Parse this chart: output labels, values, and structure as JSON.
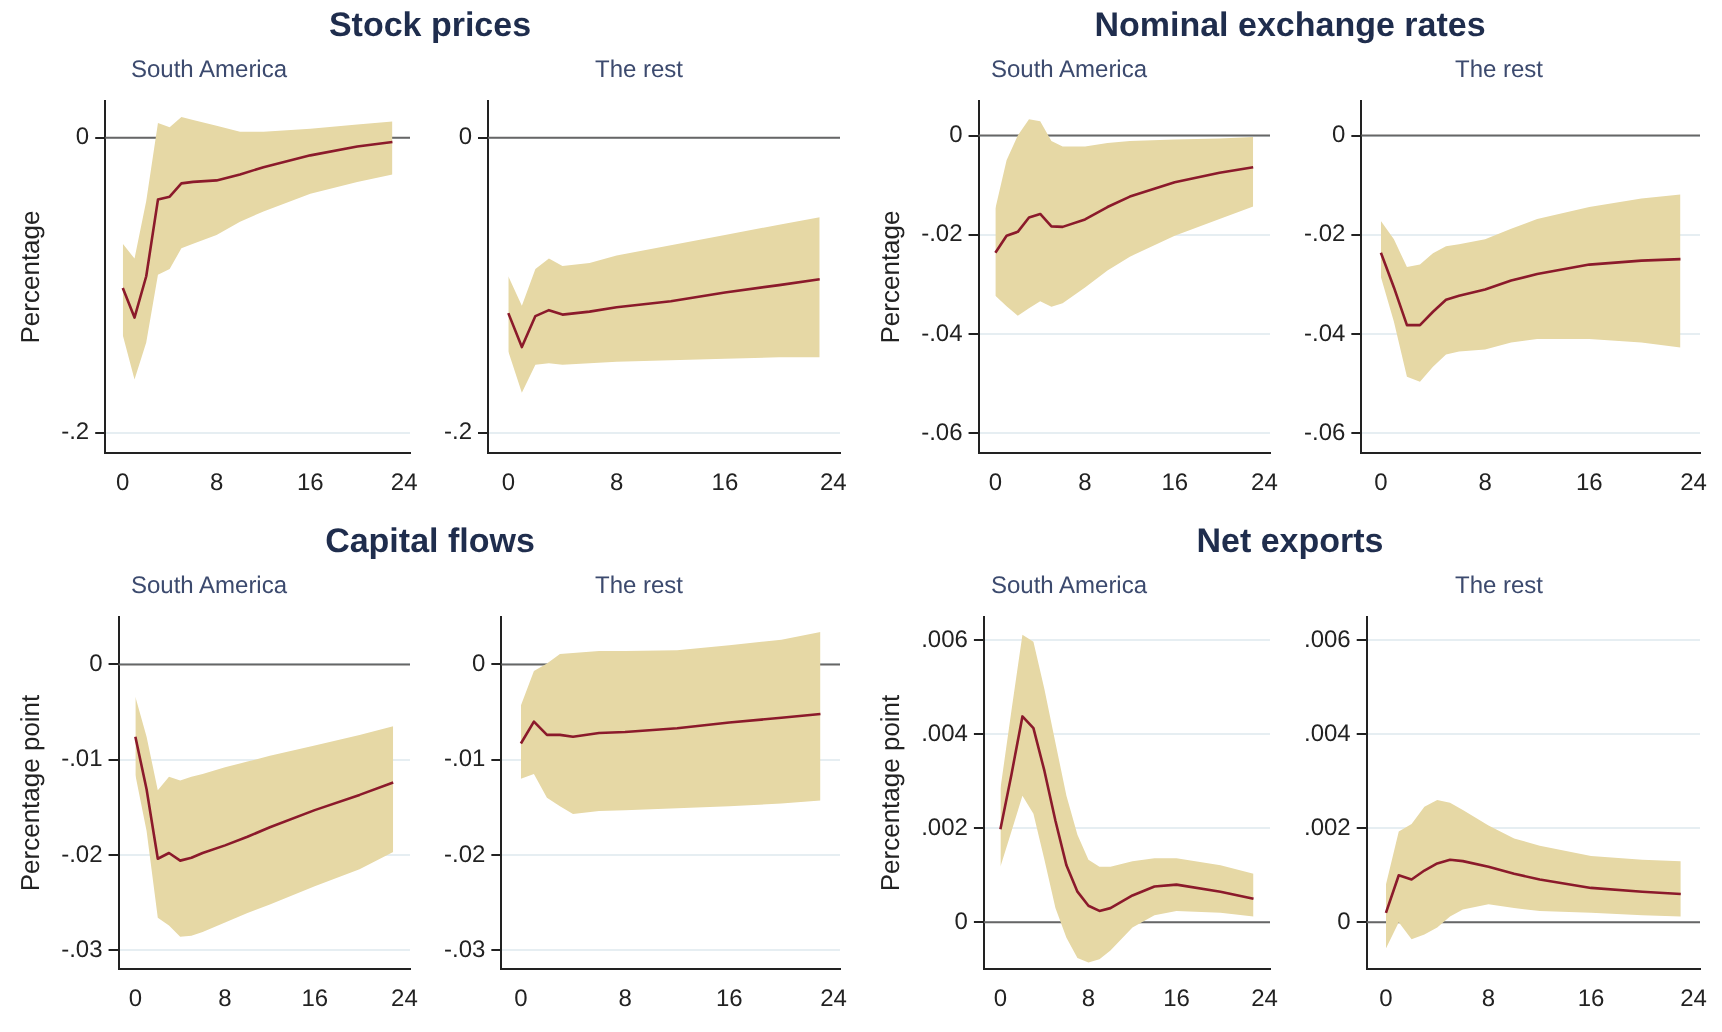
{
  "chart_data": [
    {
      "type": "line",
      "title": "Stock prices",
      "subtitle": "South America",
      "ylabel": "Percentage",
      "xlim": [
        -1.5,
        24.5
      ],
      "xticks": [
        0,
        8,
        16,
        24
      ],
      "ylim": [
        -0.214,
        0.025
      ],
      "yticks": [
        {
          "value": -0.2,
          "label": "-.2"
        },
        {
          "value": 0,
          "label": "0"
        }
      ],
      "grid": "y",
      "ref_lines": [
        {
          "axis": "y",
          "value": 0,
          "color": "#666666"
        }
      ],
      "series": [
        {
          "color": "#8b1a2b",
          "x": [
            0,
            1,
            2,
            3,
            4,
            5,
            6,
            8,
            10,
            12,
            16,
            20,
            23
          ],
          "values": [
            -0.102,
            -0.122,
            -0.094,
            -0.042,
            -0.04,
            -0.031,
            -0.03,
            -0.029,
            -0.025,
            -0.02,
            -0.012,
            -0.006,
            -0.003
          ],
          "upper": [
            -0.072,
            -0.082,
            -0.043,
            0.01,
            0.007,
            0.014,
            0.012,
            0.008,
            0.004,
            0.004,
            0.006,
            0.009,
            0.011
          ],
          "lower": [
            -0.134,
            -0.164,
            -0.139,
            -0.093,
            -0.089,
            -0.075,
            -0.072,
            -0.066,
            -0.057,
            -0.05,
            -0.038,
            -0.03,
            -0.025
          ]
        }
      ]
    },
    {
      "type": "line",
      "subtitle": "The rest",
      "xlim": [
        -1.5,
        24.5
      ],
      "xticks": [
        0,
        8,
        16,
        24
      ],
      "ylim": [
        -0.214,
        0.025
      ],
      "yticks": [
        {
          "value": -0.2,
          "label": "-.2"
        },
        {
          "value": 0,
          "label": "0"
        }
      ],
      "grid": "y",
      "ref_lines": [
        {
          "axis": "y",
          "value": 0,
          "color": "#666666"
        }
      ],
      "series": [
        {
          "color": "#8b1a2b",
          "x": [
            0,
            1,
            2,
            3,
            4,
            6,
            8,
            12,
            16,
            20,
            23
          ],
          "values": [
            -0.119,
            -0.142,
            -0.121,
            -0.117,
            -0.12,
            -0.118,
            -0.115,
            -0.111,
            -0.105,
            -0.1,
            -0.096
          ],
          "upper": [
            -0.094,
            -0.114,
            -0.089,
            -0.082,
            -0.087,
            -0.085,
            -0.08,
            -0.073,
            -0.066,
            -0.059,
            -0.054
          ],
          "lower": [
            -0.145,
            -0.173,
            -0.154,
            -0.153,
            -0.154,
            -0.153,
            -0.152,
            -0.151,
            -0.15,
            -0.149,
            -0.149
          ]
        }
      ]
    },
    {
      "type": "line",
      "title": "Nominal exchange rates",
      "subtitle": "South America",
      "ylabel": "Percentage",
      "xlim": [
        -1.5,
        24.5
      ],
      "xticks": [
        0,
        8,
        16,
        24
      ],
      "ylim": [
        -0.064,
        0.007
      ],
      "yticks": [
        {
          "value": -0.06,
          "label": "-.06"
        },
        {
          "value": -0.04,
          "label": "-.04"
        },
        {
          "value": -0.02,
          "label": "-.02"
        },
        {
          "value": 0,
          "label": "0"
        }
      ],
      "grid": "y",
      "ref_lines": [
        {
          "axis": "y",
          "value": 0,
          "color": "#666666"
        }
      ],
      "series": [
        {
          "color": "#8b1a2b",
          "x": [
            0,
            1,
            2,
            3,
            4,
            5,
            6,
            8,
            10,
            12,
            16,
            20,
            23
          ],
          "values": [
            -0.0236,
            -0.0202,
            -0.0194,
            -0.0165,
            -0.0158,
            -0.0183,
            -0.0184,
            -0.0169,
            -0.0144,
            -0.0123,
            -0.0094,
            -0.0075,
            -0.0064
          ],
          "upper": [
            -0.0147,
            -0.005,
            0.0,
            0.0033,
            0.0029,
            -0.0011,
            -0.0022,
            -0.0022,
            -0.0015,
            -0.0011,
            -0.0008,
            -0.0006,
            -0.0003
          ],
          "lower": [
            -0.0323,
            -0.0344,
            -0.0363,
            -0.0348,
            -0.0334,
            -0.0345,
            -0.0338,
            -0.0306,
            -0.0272,
            -0.0244,
            -0.0202,
            -0.0168,
            -0.0143
          ]
        }
      ]
    },
    {
      "type": "line",
      "subtitle": "The rest",
      "xlim": [
        -1.5,
        24.5
      ],
      "xticks": [
        0,
        8,
        16,
        24
      ],
      "ylim": [
        -0.064,
        0.007
      ],
      "yticks": [
        {
          "value": -0.06,
          "label": "-.06"
        },
        {
          "value": -0.04,
          "label": "-.04"
        },
        {
          "value": -0.02,
          "label": "-.02"
        },
        {
          "value": 0,
          "label": "0"
        }
      ],
      "grid": "y",
      "ref_lines": [
        {
          "axis": "y",
          "value": 0,
          "color": "#666666"
        }
      ],
      "series": [
        {
          "color": "#8b1a2b",
          "x": [
            0,
            1,
            2,
            3,
            4,
            5,
            6,
            8,
            10,
            12,
            16,
            20,
            23
          ],
          "values": [
            -0.0236,
            -0.0306,
            -0.0382,
            -0.0382,
            -0.0355,
            -0.0331,
            -0.0323,
            -0.031,
            -0.0292,
            -0.0279,
            -0.026,
            -0.0252,
            -0.0249
          ],
          "upper": [
            -0.0172,
            -0.0209,
            -0.0265,
            -0.026,
            -0.0237,
            -0.0223,
            -0.0219,
            -0.0209,
            -0.0188,
            -0.0168,
            -0.0144,
            -0.0127,
            -0.0119
          ],
          "lower": [
            -0.0285,
            -0.0375,
            -0.0486,
            -0.0496,
            -0.0466,
            -0.0441,
            -0.0435,
            -0.0431,
            -0.0417,
            -0.041,
            -0.041,
            -0.0417,
            -0.0427
          ]
        }
      ]
    },
    {
      "type": "line",
      "title": "Capital flows",
      "subtitle": "South America",
      "ylabel": "Percentage point",
      "xlim": [
        -1.5,
        24.5
      ],
      "xticks": [
        0,
        8,
        16,
        24
      ],
      "ylim": [
        -0.032,
        0.005
      ],
      "yticks": [
        {
          "value": -0.03,
          "label": "-.03"
        },
        {
          "value": -0.02,
          "label": "-.02"
        },
        {
          "value": -0.01,
          "label": "-.01"
        },
        {
          "value": 0,
          "label": "0"
        }
      ],
      "grid": "y",
      "ref_lines": [
        {
          "axis": "y",
          "value": 0,
          "color": "#666666"
        }
      ],
      "series": [
        {
          "color": "#8b1a2b",
          "x": [
            0,
            1,
            2,
            3,
            4,
            5,
            6,
            8,
            10,
            12,
            16,
            20,
            23
          ],
          "values": [
            -0.0076,
            -0.0131,
            -0.0204,
            -0.0198,
            -0.0206,
            -0.0203,
            -0.0198,
            -0.019,
            -0.0181,
            -0.0171,
            -0.0153,
            -0.0137,
            -0.0124
          ],
          "upper": [
            -0.0034,
            -0.0076,
            -0.0132,
            -0.0118,
            -0.0122,
            -0.0118,
            -0.0115,
            -0.0108,
            -0.0102,
            -0.0096,
            -0.0085,
            -0.0074,
            -0.0065
          ],
          "lower": [
            -0.0116,
            -0.0175,
            -0.0266,
            -0.0274,
            -0.0286,
            -0.0285,
            -0.0281,
            -0.0271,
            -0.0261,
            -0.0252,
            -0.0233,
            -0.0215,
            -0.0197
          ]
        }
      ]
    },
    {
      "type": "line",
      "subtitle": "The rest",
      "xlim": [
        -1.5,
        24.5
      ],
      "xticks": [
        0,
        8,
        16,
        24
      ],
      "ylim": [
        -0.032,
        0.005
      ],
      "yticks": [
        {
          "value": -0.03,
          "label": "-.03"
        },
        {
          "value": -0.02,
          "label": "-.02"
        },
        {
          "value": -0.01,
          "label": "-.01"
        },
        {
          "value": 0,
          "label": "0"
        }
      ],
      "grid": "y",
      "ref_lines": [
        {
          "axis": "y",
          "value": 0,
          "color": "#666666"
        }
      ],
      "series": [
        {
          "color": "#8b1a2b",
          "x": [
            0,
            1,
            2,
            3,
            4,
            6,
            8,
            12,
            16,
            20,
            23
          ],
          "values": [
            -0.0083,
            -0.006,
            -0.0074,
            -0.0074,
            -0.0076,
            -0.0072,
            -0.0071,
            -0.0067,
            -0.0061,
            -0.0056,
            -0.0052
          ],
          "upper": [
            -0.0043,
            -0.0007,
            0.0001,
            0.0011,
            0.0012,
            0.0014,
            0.0014,
            0.0015,
            0.002,
            0.0026,
            0.0034
          ],
          "lower": [
            -0.012,
            -0.0115,
            -0.014,
            -0.0149,
            -0.0157,
            -0.0154,
            -0.0153,
            -0.0151,
            -0.0149,
            -0.0146,
            -0.0143
          ]
        }
      ]
    },
    {
      "type": "line",
      "title": "Net exports",
      "subtitle": "South America",
      "ylabel": "Percentage point",
      "xlim": [
        -1.5,
        24.5
      ],
      "xticks": [
        0,
        8,
        16,
        24
      ],
      "ylim": [
        -0.001,
        0.0065
      ],
      "yticks": [
        {
          "value": 0,
          "label": "0"
        },
        {
          "value": 0.002,
          "label": ".002"
        },
        {
          "value": 0.004,
          "label": ".004"
        },
        {
          "value": 0.006,
          "label": ".006"
        }
      ],
      "grid": "y",
      "ref_lines": [
        {
          "axis": "y",
          "value": 0,
          "color": "#666666"
        }
      ],
      "series": [
        {
          "color": "#8b1a2b",
          "x": [
            0,
            1,
            2,
            3,
            4,
            5,
            6,
            7,
            8,
            9,
            10,
            12,
            14,
            16,
            20,
            23
          ],
          "values": [
            0.00198,
            0.00314,
            0.00438,
            0.00413,
            0.00322,
            0.00216,
            0.00121,
            0.00065,
            0.00035,
            0.00024,
            0.0003,
            0.00057,
            0.00076,
            0.0008,
            0.00065,
            0.0005
          ],
          "upper": [
            0.00284,
            0.0045,
            0.00612,
            0.00597,
            0.00496,
            0.00382,
            0.00269,
            0.00186,
            0.00133,
            0.00118,
            0.00118,
            0.0013,
            0.00136,
            0.00136,
            0.00121,
            0.00103
          ],
          "lower": [
            0.00118,
            0.00193,
            0.00269,
            0.00231,
            0.00133,
            0.0003,
            -0.00033,
            -0.00076,
            -0.00086,
            -0.00079,
            -0.0006,
            -0.00011,
            0.00015,
            0.00024,
            0.0002,
            0.00012
          ]
        }
      ]
    },
    {
      "type": "line",
      "subtitle": "The rest",
      "xlim": [
        -1.5,
        24.5
      ],
      "xticks": [
        0,
        8,
        16,
        24
      ],
      "ylim": [
        -0.001,
        0.0065
      ],
      "yticks": [
        {
          "value": 0,
          "label": "0"
        },
        {
          "value": 0.002,
          "label": ".002"
        },
        {
          "value": 0.004,
          "label": ".004"
        },
        {
          "value": 0.006,
          "label": ".006"
        }
      ],
      "grid": "y",
      "ref_lines": [
        {
          "axis": "y",
          "value": 0,
          "color": "#666666"
        }
      ],
      "series": [
        {
          "color": "#8b1a2b",
          "x": [
            0,
            1,
            2,
            3,
            4,
            5,
            6,
            8,
            10,
            12,
            16,
            20,
            23
          ],
          "values": [
            0.0002,
            0.001,
            0.00091,
            0.0011,
            0.00125,
            0.00133,
            0.0013,
            0.00118,
            0.00103,
            0.00091,
            0.00073,
            0.00065,
            0.0006
          ],
          "upper": [
            0.0008,
            0.00193,
            0.00209,
            0.00246,
            0.0026,
            0.00254,
            0.00239,
            0.00206,
            0.00178,
            0.00163,
            0.00141,
            0.00133,
            0.0013
          ],
          "lower": [
            -0.00056,
            0.0,
            -0.00036,
            -0.00026,
            -0.00011,
            0.00012,
            0.00027,
            0.00038,
            0.0003,
            0.00024,
            0.0002,
            0.00015,
            0.00012
          ]
        }
      ]
    }
  ]
}
